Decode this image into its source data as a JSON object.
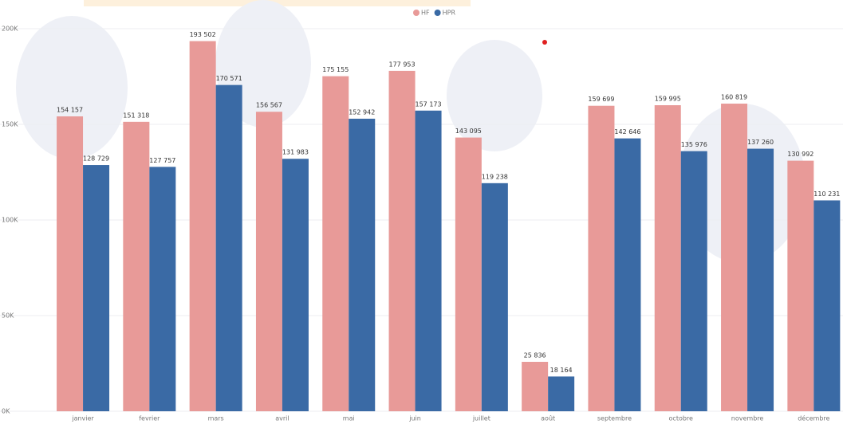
{
  "chart_data": {
    "type": "bar",
    "categories": [
      "janvier",
      "fevrier",
      "mars",
      "avril",
      "mai",
      "juin",
      "juillet",
      "août",
      "septembre",
      "octobre",
      "novembre",
      "décembre"
    ],
    "series": [
      {
        "name": "HF",
        "color": "#e89a98",
        "values": [
          154157,
          151318,
          193502,
          156567,
          175155,
          177953,
          143095,
          25836,
          159699,
          159995,
          160819,
          130992
        ],
        "value_labels": [
          "154 157",
          "151 318",
          "193 502",
          "156 567",
          "175 155",
          "177 953",
          "143 095",
          "25 836",
          "159 699",
          "159 995",
          "160 819",
          "130 992"
        ]
      },
      {
        "name": "HPR",
        "color": "#3a6aa5",
        "values": [
          128729,
          127757,
          170571,
          131983,
          152942,
          157173,
          119238,
          18164,
          142646,
          135976,
          137260,
          110231
        ],
        "value_labels": [
          "128 729",
          "127 757",
          "170 571",
          "131 983",
          "152 942",
          "157 173",
          "119 238",
          "18 164",
          "142 646",
          "135 976",
          "137 260",
          "110 231"
        ]
      }
    ],
    "ylim": [
      0,
      200000
    ],
    "yticks": [
      {
        "value": 0,
        "label": "0K"
      },
      {
        "value": 50000,
        "label": "50K"
      },
      {
        "value": 100000,
        "label": "100K"
      },
      {
        "value": 150000,
        "label": "150K"
      },
      {
        "value": 200000,
        "label": "200K"
      }
    ],
    "grid": true
  }
}
